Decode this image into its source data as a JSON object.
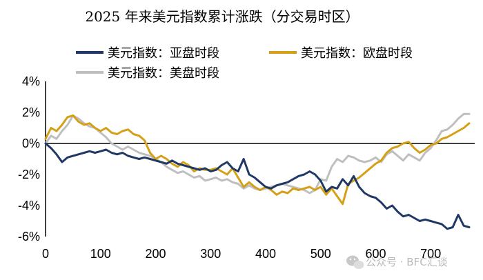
{
  "watermark": {
    "text": "公众号 · BFC汇谈",
    "icon": "wechat-icon"
  },
  "chart_data": {
    "type": "line",
    "title": "2025 年来美元指数累计涨跌（分交易时区）",
    "xlabel": "",
    "ylabel": "",
    "xlim": [
      0,
      780
    ],
    "ylim": [
      -6,
      4
    ],
    "x_ticks": [
      0,
      100,
      200,
      300,
      400,
      500,
      600,
      700
    ],
    "y_ticks": [
      4,
      2,
      0,
      -2,
      -4,
      -6
    ],
    "y_tick_labels": [
      "4%",
      "2%",
      "0%",
      "-2%",
      "-4%",
      "-6%"
    ],
    "grid": false,
    "legend_position": "top",
    "series": [
      {
        "name": "美元指数：亚盘时段",
        "color": "#1f3864",
        "x": [
          0,
          10,
          20,
          30,
          40,
          50,
          60,
          70,
          80,
          90,
          100,
          110,
          120,
          130,
          140,
          150,
          160,
          170,
          180,
          190,
          200,
          210,
          220,
          230,
          240,
          250,
          260,
          270,
          280,
          290,
          300,
          310,
          320,
          330,
          340,
          350,
          360,
          370,
          380,
          390,
          400,
          410,
          420,
          430,
          440,
          450,
          460,
          470,
          480,
          490,
          500,
          510,
          520,
          530,
          540,
          550,
          560,
          570,
          580,
          590,
          600,
          610,
          620,
          630,
          640,
          650,
          660,
          670,
          680,
          690,
          700,
          710,
          720,
          730,
          740,
          750,
          760,
          770
        ],
        "values": [
          0.0,
          -0.3,
          -0.7,
          -1.2,
          -0.9,
          -0.8,
          -0.7,
          -0.6,
          -0.5,
          -0.6,
          -0.5,
          -0.4,
          -0.6,
          -0.7,
          -0.6,
          -0.8,
          -0.9,
          -1.0,
          -0.9,
          -1.0,
          -1.1,
          -1.2,
          -1.3,
          -1.1,
          -1.3,
          -1.4,
          -1.5,
          -1.6,
          -1.7,
          -1.6,
          -1.8,
          -1.7,
          -1.4,
          -1.2,
          -1.6,
          -1.8,
          -1.0,
          -2.0,
          -2.2,
          -2.5,
          -2.8,
          -2.9,
          -2.7,
          -2.6,
          -2.5,
          -2.3,
          -2.1,
          -2.0,
          -1.8,
          -2.0,
          -2.4,
          -3.1,
          -2.8,
          -2.9,
          -2.3,
          -2.7,
          -2.1,
          -2.8,
          -3.2,
          -3.4,
          -3.5,
          -3.8,
          -4.2,
          -4.0,
          -4.4,
          -4.7,
          -4.6,
          -4.8,
          -5.0,
          -4.9,
          -5.0,
          -5.1,
          -5.2,
          -5.5,
          -5.4,
          -4.6,
          -5.3,
          -5.4
        ]
      },
      {
        "name": "美元指数：欧盘时段",
        "color": "#d4a017",
        "x": [
          0,
          10,
          20,
          30,
          40,
          50,
          60,
          70,
          80,
          90,
          100,
          110,
          120,
          130,
          140,
          150,
          160,
          170,
          180,
          190,
          200,
          210,
          220,
          230,
          240,
          250,
          260,
          270,
          280,
          290,
          300,
          310,
          320,
          330,
          340,
          350,
          360,
          370,
          380,
          390,
          400,
          410,
          420,
          430,
          440,
          450,
          460,
          470,
          480,
          490,
          500,
          510,
          520,
          530,
          540,
          550,
          560,
          570,
          580,
          590,
          600,
          610,
          620,
          630,
          640,
          650,
          660,
          670,
          680,
          690,
          700,
          710,
          720,
          730,
          740,
          750,
          760,
          770
        ],
        "values": [
          0.3,
          1.0,
          0.8,
          1.2,
          1.7,
          1.8,
          1.4,
          1.2,
          1.3,
          1.0,
          0.8,
          1.0,
          0.7,
          0.6,
          0.8,
          0.9,
          0.6,
          0.5,
          0.2,
          -0.6,
          -1.0,
          -0.8,
          -1.0,
          -1.3,
          -1.5,
          -1.2,
          -1.4,
          -1.8,
          -1.6,
          -1.7,
          -1.7,
          -1.6,
          -1.8,
          -2.0,
          -1.6,
          -2.2,
          -2.8,
          -2.5,
          -2.8,
          -3.0,
          -2.8,
          -3.0,
          -3.3,
          -3.1,
          -3.2,
          -2.9,
          -3.0,
          -2.9,
          -2.8,
          -3.0,
          -2.8,
          -3.3,
          -2.9,
          -3.4,
          -3.9,
          -2.6,
          -2.4,
          -2.2,
          -1.9,
          -1.6,
          -1.3,
          -1.1,
          -0.6,
          -0.3,
          -0.2,
          0.0,
          0.1,
          -0.3,
          -0.6,
          -0.4,
          -0.1,
          0.0,
          0.3,
          0.4,
          0.6,
          0.8,
          1.0,
          1.3
        ]
      },
      {
        "name": "美元指数：美盘时段",
        "color": "#bfbfbf",
        "x": [
          0,
          10,
          20,
          30,
          40,
          50,
          60,
          70,
          80,
          90,
          100,
          110,
          120,
          130,
          140,
          150,
          160,
          170,
          180,
          190,
          200,
          210,
          220,
          230,
          240,
          250,
          260,
          270,
          280,
          290,
          300,
          310,
          320,
          330,
          340,
          350,
          360,
          370,
          380,
          390,
          400,
          410,
          420,
          430,
          440,
          450,
          460,
          470,
          480,
          490,
          500,
          510,
          520,
          530,
          540,
          550,
          560,
          570,
          580,
          590,
          600,
          610,
          620,
          630,
          640,
          650,
          660,
          670,
          680,
          690,
          700,
          710,
          720,
          730,
          740,
          750,
          760,
          770
        ],
        "values": [
          0.0,
          0.5,
          0.3,
          0.8,
          1.2,
          1.8,
          1.6,
          1.3,
          1.1,
          1.0,
          0.7,
          0.4,
          0.0,
          -0.2,
          -0.4,
          -0.2,
          -0.4,
          -0.6,
          -0.7,
          -0.8,
          -1.0,
          -1.2,
          -1.5,
          -1.7,
          -1.9,
          -1.8,
          -2.0,
          -2.2,
          -2.1,
          -2.4,
          -2.3,
          -2.2,
          -2.4,
          -2.3,
          -2.5,
          -2.6,
          -2.9,
          -2.7,
          -2.9,
          -3.0,
          -2.9,
          -2.8,
          -2.7,
          -2.6,
          -2.7,
          -2.8,
          -2.9,
          -3.0,
          -3.2,
          -3.0,
          -2.3,
          -2.4,
          -1.5,
          -1.0,
          -1.2,
          -0.8,
          -0.9,
          -1.1,
          -1.2,
          -1.1,
          -0.9,
          -1.2,
          -0.7,
          -0.5,
          -0.8,
          -1.1,
          -0.7,
          -0.9,
          -1.1,
          -0.6,
          -0.3,
          0.2,
          0.8,
          0.9,
          1.2,
          1.6,
          1.9,
          1.9
        ]
      }
    ]
  }
}
